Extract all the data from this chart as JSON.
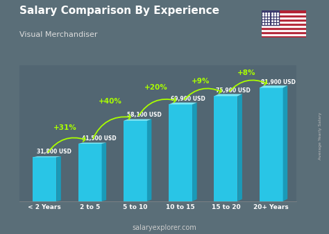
{
  "title": "Salary Comparison By Experience",
  "subtitle": "Visual Merchandiser",
  "categories": [
    "< 2 Years",
    "2 to 5",
    "5 to 10",
    "10 to 15",
    "15 to 20",
    "20+ Years"
  ],
  "values": [
    31800,
    41500,
    58100,
    69900,
    75900,
    81900
  ],
  "labels": [
    "31,800 USD",
    "41,500 USD",
    "58,100 USD",
    "69,900 USD",
    "75,900 USD",
    "81,900 USD"
  ],
  "pct_changes": [
    "+31%",
    "+40%",
    "+20%",
    "+9%",
    "+8%"
  ],
  "bar_face_color": "#29c5e6",
  "bar_top_color": "#7de8f7",
  "bar_side_color": "#1a9ab8",
  "bg_color": "#5a6e78",
  "title_color": "#ffffff",
  "subtitle_color": "#dddddd",
  "label_color": "#ffffff",
  "pct_color": "#aaff00",
  "arrow_color": "#aaff00",
  "xlabel_color": "#ffffff",
  "footer": "salaryexplorer.com",
  "footer_color": "#cccccc",
  "side_label": "Average Yearly Salary",
  "ylim": [
    0,
    98000
  ],
  "bar_width": 0.52,
  "side_depth": 0.1
}
